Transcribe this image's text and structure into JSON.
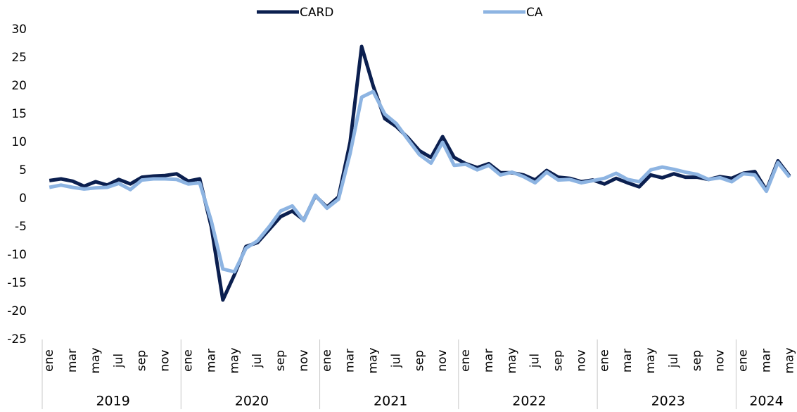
{
  "chart_data": {
    "type": "line",
    "categories": [
      "ene",
      null,
      "mar",
      null,
      "may",
      null,
      "jul",
      null,
      "sep",
      null,
      "nov",
      null,
      "ene",
      null,
      "mar",
      null,
      "may",
      null,
      "jul",
      null,
      "sep",
      null,
      "nov",
      null,
      "ene",
      null,
      "mar",
      null,
      "may",
      null,
      "jul",
      null,
      "sep",
      null,
      "nov",
      null,
      "ene",
      null,
      "mar",
      null,
      "may",
      null,
      "jul",
      null,
      "sep",
      null,
      "nov",
      null,
      "ene",
      null,
      "mar",
      null,
      "may",
      null,
      "jul",
      null,
      "sep",
      null,
      "nov",
      null,
      "ene",
      null,
      "mar",
      null,
      "may"
    ],
    "x_groups": [
      {
        "label": "2019",
        "count": 12
      },
      {
        "label": "2020",
        "count": 12
      },
      {
        "label": "2021",
        "count": 12
      },
      {
        "label": "2022",
        "count": 12
      },
      {
        "label": "2023",
        "count": 12
      },
      {
        "label": "2024",
        "count": 5
      }
    ],
    "series": [
      {
        "name": "CARD",
        "color": "#0b1f4f",
        "values": [
          3.2,
          3.5,
          3.1,
          2.2,
          3.0,
          2.4,
          3.4,
          2.6,
          3.8,
          4.0,
          4.1,
          4.4,
          3.1,
          3.5,
          -5,
          -18,
          -13.5,
          -8.5,
          -7.8,
          -5.5,
          -3.2,
          -2.2,
          -3.8,
          0.5,
          -1.5,
          0.3,
          10,
          27,
          20,
          14.2,
          12.8,
          10.8,
          8.5,
          7.3,
          11,
          7.3,
          6.2,
          5.5,
          6.2,
          4.6,
          4.6,
          4.2,
          3.3,
          5.0,
          3.8,
          3.6,
          3.0,
          3.3,
          2.6,
          3.6,
          2.8,
          2.1,
          4.2,
          3.7,
          4.4,
          3.8,
          3.8,
          3.4,
          3.9,
          3.6,
          4.5,
          4.8,
          1.5,
          6.7,
          4.0
        ]
      },
      {
        "name": "CA",
        "color": "#8db4e2",
        "values": [
          2.0,
          2.4,
          2.0,
          1.7,
          1.9,
          2.0,
          2.7,
          1.6,
          3.3,
          3.5,
          3.5,
          3.4,
          2.6,
          2.8,
          -4,
          -12.5,
          -13,
          -8.8,
          -7.5,
          -5,
          -2.2,
          -1.3,
          -3.9,
          0.6,
          -1.7,
          -0.1,
          8,
          18,
          19,
          15,
          13.3,
          10.5,
          7.8,
          6.3,
          10,
          5.9,
          6.1,
          5.1,
          5.9,
          4.2,
          4.7,
          3.9,
          2.8,
          4.7,
          3.3,
          3.4,
          2.8,
          3.2,
          3.6,
          4.5,
          3.4,
          3.0,
          5.1,
          5.6,
          5.2,
          4.7,
          4.3,
          3.4,
          3.7,
          3.0,
          4.4,
          4.2,
          1.3,
          6.4,
          3.8
        ]
      }
    ],
    "ylim": [
      -25,
      30
    ],
    "yticks": [
      -25,
      -20,
      -15,
      -10,
      -5,
      0,
      5,
      10,
      15,
      20,
      25,
      30
    ],
    "grid": false,
    "legend": "top"
  }
}
